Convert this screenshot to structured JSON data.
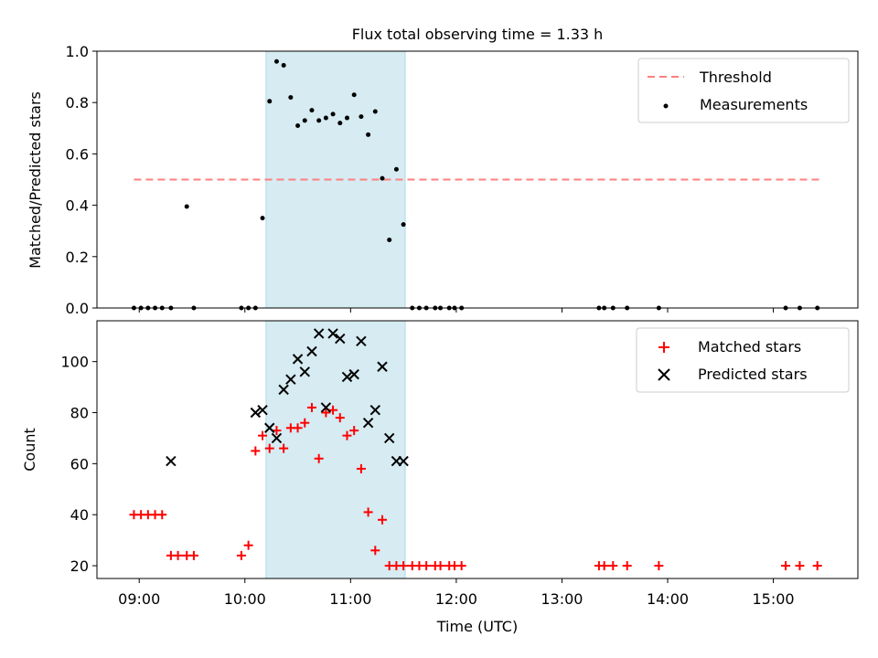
{
  "chart_data": [
    {
      "type": "scatter",
      "title": "Flux total observing time = 1.33 h",
      "xlabel": "",
      "ylabel": "Matched/Predicted stars",
      "xlim": [
        "08:36",
        "15:48"
      ],
      "ylim": [
        0,
        1.0
      ],
      "yticks": [
        0.0,
        0.2,
        0.4,
        0.6,
        0.8,
        1.0
      ],
      "ytick_labels": [
        "0.0",
        "0.2",
        "0.4",
        "0.6",
        "0.8",
        "1.0"
      ],
      "highlight_span": [
        "10:12",
        "11:31"
      ],
      "highlight_color": "#add8e6",
      "threshold": {
        "name": "Threshold",
        "value": 0.5,
        "x": [
          "08:57",
          "15:28"
        ],
        "color": "#ff7f7f"
      },
      "legend_position": "upper right",
      "series": [
        {
          "name": "Measurements",
          "marker": "dot",
          "color": "#000000",
          "x": [
            "08:57",
            "09:01",
            "09:05",
            "09:09",
            "09:13",
            "09:18",
            "09:27",
            "09:31",
            "09:58",
            "10:02",
            "10:06",
            "10:10",
            "10:14",
            "10:18",
            "10:22",
            "10:26",
            "10:30",
            "10:34",
            "10:38",
            "10:42",
            "10:46",
            "10:50",
            "10:54",
            "10:58",
            "11:02",
            "11:06",
            "11:10",
            "11:14",
            "11:18",
            "11:22",
            "11:26",
            "11:30",
            "11:35",
            "11:39",
            "11:43",
            "11:48",
            "11:51",
            "11:56",
            "11:59",
            "12:03",
            "13:21",
            "13:24",
            "13:29",
            "13:37",
            "13:55",
            "15:07",
            "15:15",
            "15:25"
          ],
          "y": [
            0,
            0,
            0,
            0,
            0,
            0,
            0.395,
            0,
            0,
            0,
            0,
            0.35,
            0.805,
            0.96,
            0.945,
            0.82,
            0.71,
            0.73,
            0.77,
            0.73,
            0.74,
            0.755,
            0.72,
            0.74,
            0.83,
            0.745,
            0.675,
            0.765,
            0.505,
            0.265,
            0.54,
            0.325,
            0,
            0,
            0,
            0,
            0,
            0,
            0,
            0,
            0,
            0,
            0,
            0,
            0,
            0,
            0,
            0
          ]
        }
      ]
    },
    {
      "type": "scatter",
      "title": "",
      "xlabel": "Time (UTC)",
      "ylabel": "Count",
      "xlim": [
        "08:36",
        "15:48"
      ],
      "ylim": [
        15,
        116
      ],
      "yticks": [
        20,
        40,
        60,
        80,
        100
      ],
      "ytick_labels": [
        "20",
        "40",
        "60",
        "80",
        "100"
      ],
      "xticks": [
        "09:00",
        "10:00",
        "11:00",
        "12:00",
        "13:00",
        "14:00",
        "15:00"
      ],
      "xtick_labels": [
        "09:00",
        "10:00",
        "11:00",
        "12:00",
        "13:00",
        "14:00",
        "15:00"
      ],
      "highlight_span": [
        "10:12",
        "11:31"
      ],
      "highlight_color": "#add8e6",
      "legend_position": "upper right",
      "series": [
        {
          "name": "Matched stars",
          "marker": "plus",
          "color": "#ff0000",
          "x": [
            "08:57",
            "09:01",
            "09:05",
            "09:09",
            "09:13",
            "09:18",
            "09:22",
            "09:27",
            "09:31",
            "09:58",
            "10:02",
            "10:06",
            "10:10",
            "10:14",
            "10:18",
            "10:22",
            "10:26",
            "10:30",
            "10:34",
            "10:38",
            "10:42",
            "10:46",
            "10:50",
            "10:54",
            "10:58",
            "11:02",
            "11:06",
            "11:10",
            "11:14",
            "11:18",
            "11:22",
            "11:26",
            "11:30",
            "11:35",
            "11:39",
            "11:43",
            "11:48",
            "11:51",
            "11:56",
            "11:59",
            "12:03",
            "13:21",
            "13:24",
            "13:29",
            "13:37",
            "13:55",
            "15:07",
            "15:15",
            "15:25"
          ],
          "y": [
            40,
            40,
            40,
            40,
            40,
            24,
            24,
            24,
            24,
            24,
            28,
            65,
            71,
            66,
            73,
            66,
            74,
            74,
            76,
            82,
            62,
            80,
            81,
            78,
            71,
            73,
            58,
            41,
            26,
            38,
            20,
            20,
            20,
            20,
            20,
            20,
            20,
            20,
            20,
            20,
            20,
            20,
            20,
            20,
            20,
            20,
            20,
            20,
            20
          ]
        },
        {
          "name": "Predicted stars",
          "marker": "x",
          "color": "#000000",
          "x": [
            "09:18",
            "10:06",
            "10:10",
            "10:14",
            "10:18",
            "10:22",
            "10:26",
            "10:30",
            "10:34",
            "10:38",
            "10:42",
            "10:46",
            "10:50",
            "10:54",
            "10:58",
            "11:02",
            "11:06",
            "11:10",
            "11:14",
            "11:18",
            "11:22",
            "11:26",
            "11:30"
          ],
          "y": [
            61,
            80,
            81,
            74,
            70,
            89,
            93,
            101,
            96,
            104,
            111,
            82,
            111,
            109,
            94,
            95,
            108,
            76,
            81,
            98,
            70,
            61,
            61
          ]
        }
      ]
    }
  ]
}
